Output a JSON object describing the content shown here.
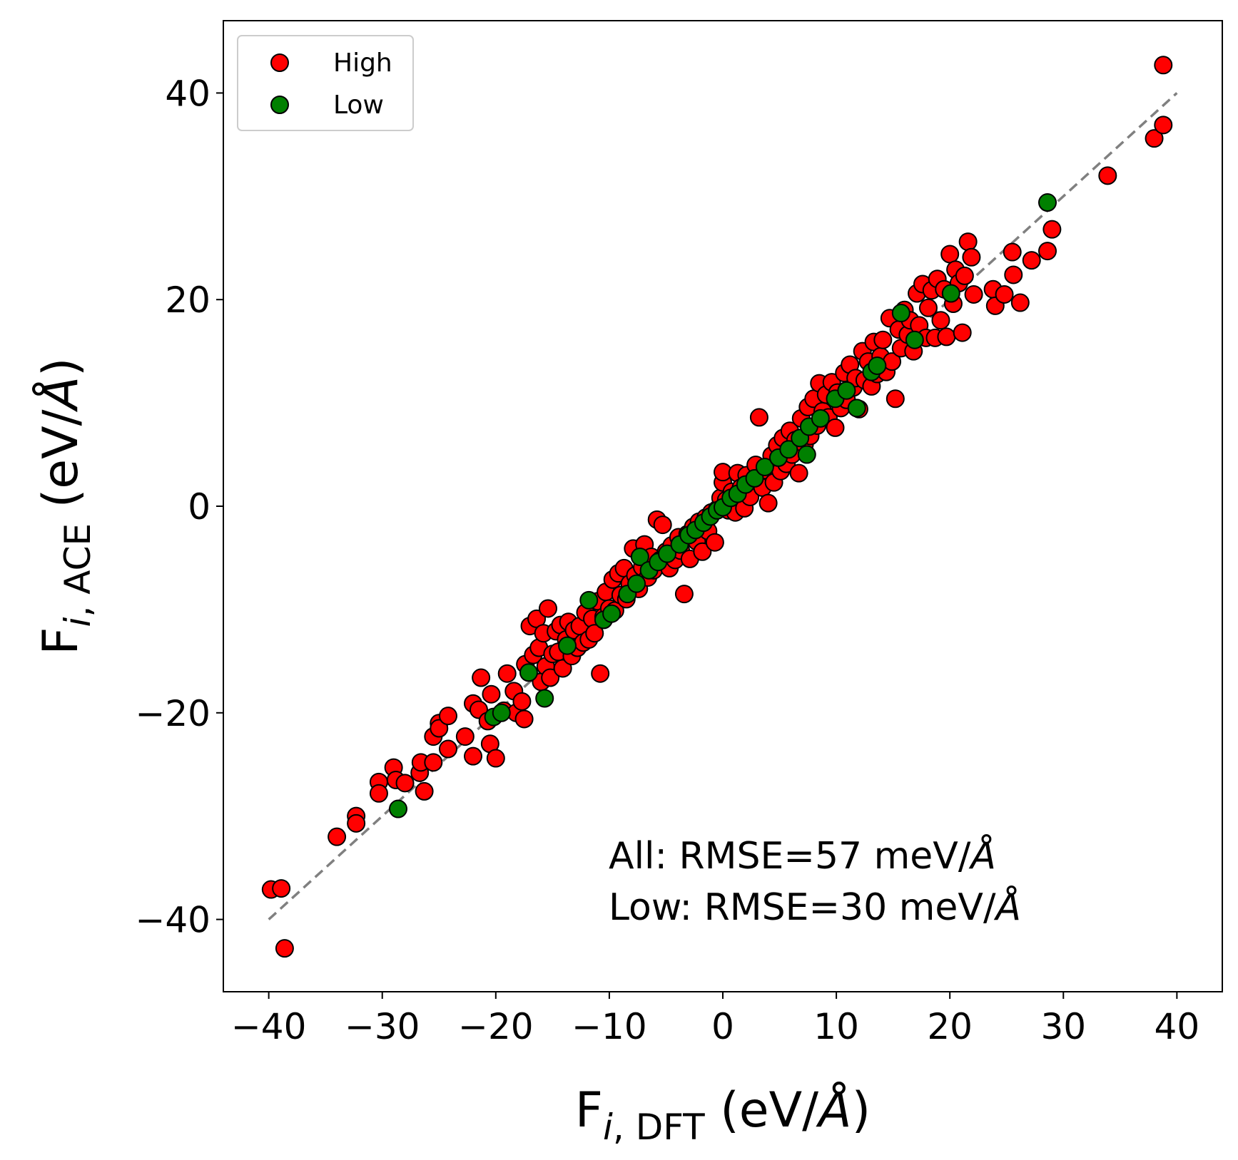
{
  "chart_data": {
    "type": "scatter",
    "xlabel": {
      "main": "F",
      "sub_italic": "i",
      "sub_rest": ", DFT",
      "unit": " (eV/",
      "unit_italic": "Å",
      "close": ")"
    },
    "ylabel": {
      "main": "F",
      "sub_italic": "i",
      "sub_rest": ", ACE",
      "unit": " (eV/",
      "unit_italic": "Å",
      "close": ")"
    },
    "xlim": [
      -44,
      44
    ],
    "ylim": [
      -47,
      47
    ],
    "xticks": [
      -40,
      -30,
      -20,
      -10,
      0,
      10,
      20,
      30,
      40
    ],
    "xtick_labels": [
      "−40",
      "−30",
      "−20",
      "−10",
      "0",
      "10",
      "20",
      "30",
      "40"
    ],
    "yticks": [
      -40,
      -20,
      0,
      20,
      40
    ],
    "ytick_labels": [
      "−40",
      "−20",
      "0",
      "20",
      "40"
    ],
    "grid": false,
    "legend_position": "top-left",
    "reference_line": {
      "style": "dashed",
      "color": "#808080",
      "from": [
        -40,
        -40
      ],
      "to": [
        40,
        40
      ]
    },
    "annotation": {
      "line1": {
        "text": "All: RMSE=57 meV/",
        "italic": "Å"
      },
      "line2": {
        "text": "Low: RMSE=30 meV/",
        "italic": "Å"
      }
    },
    "series": [
      {
        "name": "High",
        "color": "#ff0000",
        "edgecolor": "#000000",
        "points": [
          [
            -39.8,
            -37.1
          ],
          [
            -38.9,
            -37.0
          ],
          [
            -38.6,
            -42.8
          ],
          [
            -34.0,
            -32.0
          ],
          [
            -32.3,
            -30.0
          ],
          [
            -32.3,
            -30.7
          ],
          [
            -30.3,
            -26.7
          ],
          [
            -30.3,
            -27.8
          ],
          [
            -29.0,
            -25.3
          ],
          [
            -28.8,
            -26.5
          ],
          [
            -28.0,
            -26.8
          ],
          [
            -26.7,
            -25.8
          ],
          [
            -26.6,
            -24.8
          ],
          [
            -26.3,
            -27.6
          ],
          [
            -25.5,
            -24.8
          ],
          [
            -25.5,
            -22.3
          ],
          [
            -25.0,
            -21.0
          ],
          [
            -25.0,
            -21.5
          ],
          [
            -24.2,
            -20.3
          ],
          [
            -24.2,
            -23.5
          ],
          [
            -22.7,
            -22.3
          ],
          [
            -22.0,
            -24.2
          ],
          [
            -22.0,
            -19.1
          ],
          [
            -21.5,
            -19.7
          ],
          [
            -21.3,
            -16.6
          ],
          [
            -20.7,
            -20.8
          ],
          [
            -20.5,
            -23.0
          ],
          [
            -20.4,
            -18.2
          ],
          [
            -20.0,
            -24.4
          ],
          [
            -19.3,
            -19.8
          ],
          [
            -19.0,
            -16.2
          ],
          [
            -18.4,
            -17.9
          ],
          [
            -18.2,
            -20.0
          ],
          [
            -17.7,
            -18.9
          ],
          [
            -17.5,
            -20.6
          ],
          [
            -17.4,
            -15.3
          ],
          [
            -17.0,
            -11.6
          ],
          [
            -16.7,
            -14.4
          ],
          [
            -16.4,
            -10.9
          ],
          [
            -16.2,
            -13.7
          ],
          [
            -16.0,
            -17.0
          ],
          [
            -15.8,
            -12.3
          ],
          [
            -15.6,
            -15.5
          ],
          [
            -15.4,
            -9.9
          ],
          [
            -15.2,
            -16.6
          ],
          [
            -15.0,
            -14.3
          ],
          [
            -14.7,
            -12.1
          ],
          [
            -14.5,
            -14.1
          ],
          [
            -14.3,
            -11.5
          ],
          [
            -14.1,
            -15.7
          ],
          [
            -13.8,
            -12.9
          ],
          [
            -13.6,
            -11.2
          ],
          [
            -13.3,
            -14.5
          ],
          [
            -13.1,
            -12.0
          ],
          [
            -12.8,
            -13.7
          ],
          [
            -12.6,
            -11.6
          ],
          [
            -12.3,
            -13.2
          ],
          [
            -12.1,
            -10.3
          ],
          [
            -11.8,
            -12.9
          ],
          [
            -11.5,
            -10.9
          ],
          [
            -11.3,
            -12.3
          ],
          [
            -11.0,
            -9.2
          ],
          [
            -10.8,
            -16.2
          ],
          [
            -10.5,
            -10.7
          ],
          [
            -10.3,
            -8.3
          ],
          [
            -10.0,
            -9.9
          ],
          [
            -9.7,
            -7.1
          ],
          [
            -9.5,
            -10.1
          ],
          [
            -9.2,
            -6.5
          ],
          [
            -9.0,
            -8.6
          ],
          [
            -8.7,
            -6.0
          ],
          [
            -8.5,
            -9.0
          ],
          [
            -8.2,
            -7.5
          ],
          [
            -7.9,
            -4.1
          ],
          [
            -7.7,
            -6.7
          ],
          [
            -7.4,
            -8.0
          ],
          [
            -7.1,
            -5.9
          ],
          [
            -6.9,
            -3.7
          ],
          [
            -6.6,
            -6.9
          ],
          [
            -6.3,
            -4.9
          ],
          [
            -6.1,
            -6.2
          ],
          [
            -5.8,
            -1.3
          ],
          [
            -5.5,
            -5.2
          ],
          [
            -5.3,
            -1.8
          ],
          [
            -5.0,
            -4.4
          ],
          [
            -4.7,
            -6.0
          ],
          [
            -4.5,
            -3.8
          ],
          [
            -4.2,
            -5.2
          ],
          [
            -3.9,
            -3.0
          ],
          [
            -3.7,
            -4.3
          ],
          [
            -3.4,
            -8.5
          ],
          [
            -3.1,
            -2.7
          ],
          [
            -2.9,
            -5.1
          ],
          [
            -2.6,
            -2.0
          ],
          [
            -2.3,
            -3.4
          ],
          [
            -2.1,
            -1.5
          ],
          [
            -1.8,
            -4.4
          ],
          [
            -1.5,
            -1.1
          ],
          [
            -1.3,
            -2.4
          ],
          [
            -1.0,
            -0.6
          ],
          [
            -0.7,
            -3.5
          ],
          [
            -0.5,
            -0.3
          ],
          [
            -0.2,
            0.8
          ],
          [
            0.0,
            2.3
          ],
          [
            0.0,
            3.3
          ],
          [
            0.3,
            0.6
          ],
          [
            0.5,
            -0.4
          ],
          [
            0.8,
            1.4
          ],
          [
            1.1,
            -0.6
          ],
          [
            1.3,
            3.2
          ],
          [
            1.6,
            1.8
          ],
          [
            1.9,
            -0.2
          ],
          [
            2.1,
            3.0
          ],
          [
            2.4,
            0.9
          ],
          [
            2.7,
            2.5
          ],
          [
            2.9,
            4.0
          ],
          [
            3.2,
            8.6
          ],
          [
            3.5,
            1.8
          ],
          [
            3.7,
            3.5
          ],
          [
            4.0,
            0.3
          ],
          [
            4.3,
            4.9
          ],
          [
            4.5,
            2.3
          ],
          [
            4.8,
            5.9
          ],
          [
            5.1,
            3.4
          ],
          [
            5.3,
            6.6
          ],
          [
            5.6,
            4.1
          ],
          [
            5.9,
            7.3
          ],
          [
            6.1,
            5.0
          ],
          [
            6.4,
            6.4
          ],
          [
            6.7,
            3.2
          ],
          [
            6.9,
            8.5
          ],
          [
            7.2,
            6.0
          ],
          [
            7.5,
            9.6
          ],
          [
            7.7,
            6.8
          ],
          [
            8.0,
            10.4
          ],
          [
            8.3,
            7.8
          ],
          [
            8.5,
            11.9
          ],
          [
            8.8,
            9.2
          ],
          [
            9.1,
            10.8
          ],
          [
            9.3,
            8.6
          ],
          [
            9.6,
            12.0
          ],
          [
            9.9,
            7.6
          ],
          [
            10.1,
            11.0
          ],
          [
            10.4,
            9.5
          ],
          [
            10.7,
            12.9
          ],
          [
            10.9,
            10.3
          ],
          [
            11.2,
            13.7
          ],
          [
            11.5,
            11.5
          ],
          [
            11.7,
            12.4
          ],
          [
            12.0,
            9.4
          ],
          [
            12.3,
            15.0
          ],
          [
            12.5,
            12.2
          ],
          [
            12.8,
            14.0
          ],
          [
            13.1,
            11.6
          ],
          [
            13.3,
            15.9
          ],
          [
            13.6,
            12.8
          ],
          [
            13.9,
            14.5
          ],
          [
            14.1,
            16.1
          ],
          [
            14.4,
            13.0
          ],
          [
            14.7,
            18.2
          ],
          [
            14.9,
            14.0
          ],
          [
            15.2,
            10.4
          ],
          [
            15.5,
            17.1
          ],
          [
            15.7,
            15.3
          ],
          [
            16.0,
            19.0
          ],
          [
            16.3,
            16.6
          ],
          [
            16.5,
            18.0
          ],
          [
            16.8,
            15.0
          ],
          [
            17.1,
            20.6
          ],
          [
            17.3,
            17.5
          ],
          [
            17.6,
            21.5
          ],
          [
            17.9,
            16.3
          ],
          [
            18.1,
            19.2
          ],
          [
            18.4,
            20.9
          ],
          [
            18.7,
            16.3
          ],
          [
            18.9,
            22.0
          ],
          [
            19.2,
            18.0
          ],
          [
            19.5,
            21.0
          ],
          [
            19.7,
            16.4
          ],
          [
            20.0,
            24.4
          ],
          [
            20.3,
            19.6
          ],
          [
            20.5,
            22.9
          ],
          [
            20.8,
            21.6
          ],
          [
            21.1,
            16.8
          ],
          [
            21.3,
            22.3
          ],
          [
            21.6,
            25.6
          ],
          [
            21.9,
            24.1
          ],
          [
            22.1,
            20.5
          ],
          [
            23.8,
            21.0
          ],
          [
            24.0,
            19.4
          ],
          [
            24.8,
            20.5
          ],
          [
            25.5,
            24.6
          ],
          [
            25.6,
            22.4
          ],
          [
            26.2,
            19.7
          ],
          [
            27.2,
            23.8
          ],
          [
            28.6,
            24.7
          ],
          [
            29.0,
            26.8
          ],
          [
            33.9,
            32.0
          ],
          [
            38.0,
            35.6
          ],
          [
            38.8,
            36.9
          ],
          [
            38.8,
            42.7
          ]
        ]
      },
      {
        "name": "Low",
        "color": "#008000",
        "edgecolor": "#000000",
        "points": [
          [
            -28.6,
            -29.3
          ],
          [
            -20.2,
            -20.4
          ],
          [
            -19.5,
            -20.0
          ],
          [
            -17.1,
            -16.1
          ],
          [
            -15.7,
            -18.6
          ],
          [
            -13.7,
            -13.5
          ],
          [
            -11.8,
            -9.1
          ],
          [
            -10.5,
            -11.0
          ],
          [
            -9.8,
            -10.4
          ],
          [
            -8.4,
            -8.5
          ],
          [
            -7.6,
            -7.5
          ],
          [
            -7.3,
            -4.9
          ],
          [
            -6.5,
            -6.2
          ],
          [
            -5.7,
            -5.4
          ],
          [
            -4.9,
            -4.6
          ],
          [
            -3.8,
            -3.7
          ],
          [
            -3.0,
            -2.8
          ],
          [
            -2.4,
            -2.3
          ],
          [
            -1.7,
            -1.6
          ],
          [
            -1.1,
            -1.0
          ],
          [
            -0.5,
            -0.4
          ],
          [
            0.0,
            -0.1
          ],
          [
            0.7,
            0.8
          ],
          [
            1.3,
            1.2
          ],
          [
            2.0,
            2.1
          ],
          [
            2.8,
            2.7
          ],
          [
            3.7,
            3.8
          ],
          [
            4.9,
            4.7
          ],
          [
            5.8,
            5.5
          ],
          [
            6.8,
            6.6
          ],
          [
            7.4,
            5.0
          ],
          [
            7.6,
            7.7
          ],
          [
            8.6,
            8.5
          ],
          [
            9.9,
            10.4
          ],
          [
            10.9,
            11.2
          ],
          [
            11.8,
            9.5
          ],
          [
            13.1,
            13.0
          ],
          [
            13.6,
            13.6
          ],
          [
            15.7,
            18.7
          ],
          [
            16.9,
            16.1
          ],
          [
            20.1,
            20.6
          ],
          [
            28.6,
            29.4
          ]
        ]
      }
    ]
  }
}
